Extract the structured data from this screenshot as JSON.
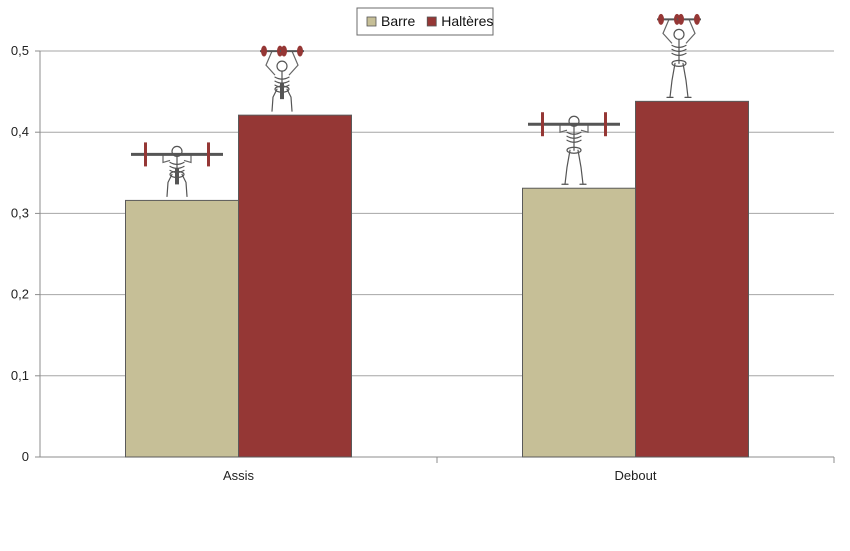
{
  "chart_data": {
    "type": "bar",
    "categories": [
      "Assis",
      "Debout"
    ],
    "series": [
      {
        "name": "Barre",
        "values": [
          0.316,
          0.331
        ],
        "color": "#c6bf97"
      },
      {
        "name": "Haltères",
        "values": [
          0.421,
          0.438
        ],
        "color": "#953735"
      }
    ],
    "ylim": [
      0,
      0.5
    ],
    "yticks": [
      "0",
      "0,1",
      "0,2",
      "0,3",
      "0,4",
      "0,5"
    ],
    "grid": true,
    "legend_position": "top-center",
    "annotations": [
      {
        "category": "Assis",
        "series": "Barre",
        "icon": "seated-barbell-press-figure-icon"
      },
      {
        "category": "Assis",
        "series": "Haltères",
        "icon": "seated-dumbbell-press-figure-icon"
      },
      {
        "category": "Debout",
        "series": "Barre",
        "icon": "standing-barbell-press-figure-icon"
      },
      {
        "category": "Debout",
        "series": "Haltères",
        "icon": "standing-dumbbell-press-figure-icon"
      }
    ]
  }
}
